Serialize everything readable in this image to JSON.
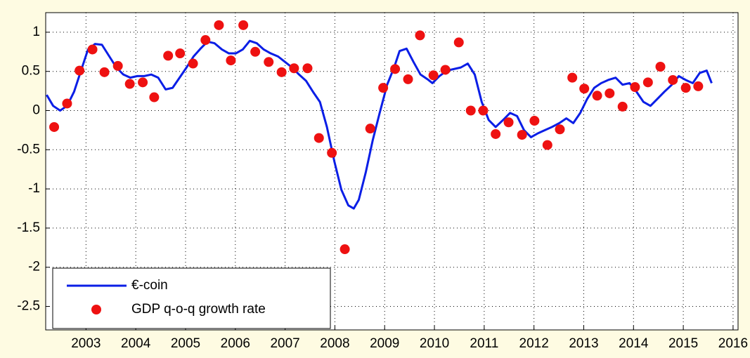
{
  "chart_data": {
    "type": "line",
    "xlim": [
      2002.19,
      2016.1
    ],
    "xticks": [
      2003,
      2004,
      2005,
      2006,
      2007,
      2008,
      2009,
      2010,
      2011,
      2012,
      2013,
      2014,
      2015,
      2016
    ],
    "ylim": [
      -2.8,
      1.25
    ],
    "yticks": [
      -2.5,
      -2,
      -1.5,
      -1,
      -0.5,
      0,
      0.5,
      1
    ],
    "grid": true,
    "legend": "lower left",
    "series": [
      {
        "name": "€-coin",
        "type": "line",
        "color": "#0a1ee6",
        "x": [
          2002.21,
          2002.34,
          2002.48,
          2002.62,
          2002.76,
          2002.9,
          2003.04,
          2003.18,
          2003.32,
          2003.47,
          2003.61,
          2003.75,
          2003.89,
          2004.03,
          2004.17,
          2004.31,
          2004.45,
          2004.6,
          2004.74,
          2004.88,
          2005.02,
          2005.16,
          2005.3,
          2005.44,
          2005.58,
          2005.73,
          2005.87,
          2006.01,
          2006.15,
          2006.29,
          2006.43,
          2006.57,
          2006.71,
          2006.86,
          2007.0,
          2007.14,
          2007.28,
          2007.42,
          2007.56,
          2007.7,
          2007.84,
          2007.99,
          2008.13,
          2008.27,
          2008.38,
          2008.48,
          2008.62,
          2008.76,
          2008.9,
          2009.05,
          2009.19,
          2009.3,
          2009.44,
          2009.58,
          2009.72,
          2009.86,
          2009.96,
          2010.1,
          2010.25,
          2010.39,
          2010.53,
          2010.67,
          2010.81,
          2010.95,
          2011.09,
          2011.23,
          2011.38,
          2011.52,
          2011.66,
          2011.8,
          2011.94,
          2012.08,
          2012.22,
          2012.36,
          2012.51,
          2012.65,
          2012.79,
          2012.93,
          2013.07,
          2013.21,
          2013.35,
          2013.49,
          2013.64,
          2013.78,
          2013.92,
          2014.06,
          2014.2,
          2014.34,
          2014.48,
          2014.62,
          2014.77,
          2014.91,
          2015.05,
          2015.19,
          2015.33,
          2015.47,
          2015.57
        ],
        "values": [
          0.2,
          0.06,
          0,
          0.06,
          0.24,
          0.51,
          0.78,
          0.85,
          0.84,
          0.69,
          0.55,
          0.46,
          0.42,
          0.44,
          0.44,
          0.46,
          0.42,
          0.27,
          0.29,
          0.42,
          0.55,
          0.69,
          0.79,
          0.88,
          0.86,
          0.78,
          0.73,
          0.73,
          0.78,
          0.89,
          0.86,
          0.78,
          0.73,
          0.69,
          0.62,
          0.55,
          0.46,
          0.38,
          0.24,
          0.11,
          -0.21,
          -0.65,
          -1.01,
          -1.21,
          -1.25,
          -1.14,
          -0.79,
          -0.38,
          -0.03,
          0.33,
          0.55,
          0.76,
          0.79,
          0.62,
          0.46,
          0.4,
          0.35,
          0.44,
          0.51,
          0.53,
          0.55,
          0.6,
          0.46,
          0.11,
          -0.12,
          -0.21,
          -0.12,
          -0.03,
          -0.07,
          -0.25,
          -0.34,
          -0.29,
          -0.25,
          -0.21,
          -0.16,
          -0.1,
          -0.16,
          -0.03,
          0.15,
          0.29,
          0.35,
          0.39,
          0.42,
          0.33,
          0.35,
          0.24,
          0.11,
          0.06,
          0.15,
          0.24,
          0.33,
          0.44,
          0.39,
          0.35,
          0.48,
          0.51,
          0.35
        ]
      },
      {
        "name": "GDP q-o-q growth rate",
        "type": "scatter",
        "color": "#ee1111",
        "x": [
          2002.36,
          2002.62,
          2002.87,
          2003.13,
          2003.37,
          2003.64,
          2003.88,
          2004.14,
          2004.37,
          2004.65,
          2004.89,
          2005.15,
          2005.4,
          2005.67,
          2005.91,
          2006.16,
          2006.4,
          2006.67,
          2006.93,
          2007.18,
          2007.45,
          2007.68,
          2007.94,
          2008.2,
          2008.71,
          2008.97,
          2009.21,
          2009.47,
          2009.71,
          2009.98,
          2010.22,
          2010.49,
          2010.73,
          2010.98,
          2011.23,
          2011.49,
          2011.76,
          2012.01,
          2012.27,
          2012.52,
          2012.77,
          2013.01,
          2013.27,
          2013.52,
          2013.78,
          2014.03,
          2014.29,
          2014.54,
          2014.79,
          2015.05,
          2015.3
        ],
        "values": [
          -0.21,
          0.09,
          0.51,
          0.78,
          0.49,
          0.57,
          0.34,
          0.36,
          0.17,
          0.7,
          0.73,
          0.6,
          0.9,
          1.09,
          0.64,
          1.09,
          0.75,
          0.62,
          0.49,
          0.54,
          0.54,
          -0.35,
          -0.54,
          -1.77,
          -0.23,
          0.29,
          0.53,
          0.4,
          0.96,
          0.45,
          0.52,
          0.87,
          0.0,
          0.0,
          -0.3,
          -0.15,
          -0.31,
          -0.13,
          -0.44,
          -0.24,
          0.42,
          0.28,
          0.19,
          0.22,
          0.05,
          0.3,
          0.36,
          0.56,
          0.39,
          0.29,
          0.31
        ]
      }
    ]
  }
}
